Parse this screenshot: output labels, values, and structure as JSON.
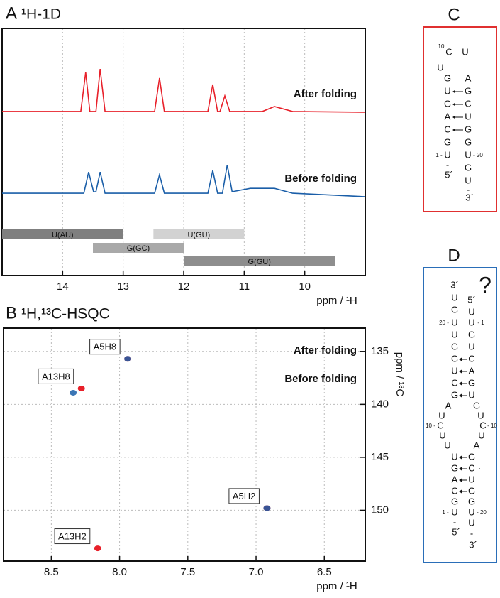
{
  "chart_data": [
    {
      "type": "line",
      "label": "A",
      "title": "¹H-1D",
      "x_label": "ppm / ¹H",
      "xlim": [
        15,
        9
      ],
      "xticks": [
        14,
        13,
        12,
        11,
        10
      ],
      "ylim": [
        0,
        100
      ],
      "grid": true,
      "series": [
        {
          "name": "After folding",
          "color": "#e8202a",
          "x": [
            15,
            13.7,
            13.62,
            13.55,
            13.45,
            13.38,
            13.3,
            12.48,
            12.4,
            12.32,
            11.6,
            11.52,
            11.44,
            11.4,
            11.32,
            11.24,
            10.7,
            10.5,
            10.2,
            9
          ],
          "values": [
            66.4,
            66.4,
            82.2,
            66.4,
            66.4,
            83.6,
            66.4,
            66.4,
            79.9,
            66.4,
            66.4,
            77.3,
            66.4,
            66.4,
            72.7,
            66.4,
            66.4,
            68.4,
            66.4,
            66.1
          ]
        },
        {
          "name": "Before folding",
          "color": "#1a5ea8",
          "x": [
            15,
            13.65,
            13.57,
            13.49,
            13.45,
            13.38,
            13.3,
            12.48,
            12.4,
            12.32,
            11.6,
            11.52,
            11.44,
            11.36,
            11.28,
            11.2,
            10.9,
            10.5,
            10.2,
            9
          ],
          "values": [
            33.3,
            33.3,
            41.9,
            33.9,
            33.9,
            41.9,
            33.3,
            33.3,
            40.8,
            33.3,
            33.3,
            42.5,
            33.3,
            33.3,
            44.8,
            33.9,
            35.3,
            35.3,
            33.3,
            31.9
          ]
        }
      ],
      "ranges": [
        {
          "name": "U(AU)",
          "start": 15,
          "end": 13,
          "color": "#7f7f7f"
        },
        {
          "name": "U(GU)",
          "start": 12.5,
          "end": 11,
          "color": "#d2d2d2"
        },
        {
          "name": "G(GC)",
          "start": 13.5,
          "end": 12,
          "color": "#a9a9a9"
        },
        {
          "name": "G(GU)",
          "start": 12,
          "end": 9.5,
          "color": "#8e8e8e"
        }
      ]
    },
    {
      "type": "scatter",
      "label": "B",
      "title": "¹H,¹³C-HSQC",
      "x_label": "ppm / ¹H",
      "y_label": "ppm / ¹³C",
      "xlim": [
        8.85,
        6.2
      ],
      "xticks": [
        8.5,
        {
          "value": 8,
          "label": "8.0"
        },
        7.5,
        {
          "value": 7,
          "label": "7.0"
        },
        6.5
      ],
      "ylim": [
        132.8,
        154.8
      ],
      "yticks": [
        135,
        140,
        145,
        150
      ],
      "grid": true,
      "series": [
        {
          "name": "After folding",
          "color": "#e8202a",
          "x": [
            7.94,
            8.28,
            6.92,
            8.16
          ],
          "values": [
            135.7,
            138.5,
            149.8,
            153.6
          ],
          "labels": [
            "A5H8",
            "A13H8",
            "A5H2",
            "A13H2"
          ]
        },
        {
          "name": "Before folding",
          "color": "#1a5ea8",
          "x": [
            7.94,
            8.34,
            6.92
          ],
          "values": [
            135.7,
            138.9,
            149.8
          ]
        }
      ]
    }
  ],
  "panel_c": {
    "label": "C",
    "border_color": "#e03030",
    "highlight_color": "#e03030",
    "highlighted": [
      5,
      10
    ],
    "nodes": [
      "10",
      "C",
      "U",
      "U",
      "G",
      "A",
      "U",
      "G",
      "G",
      "C",
      "A",
      "U",
      "C",
      "G",
      "G",
      "G",
      "1 -",
      "U",
      "U",
      "- 20",
      "-",
      "G",
      "5´",
      "U",
      "-",
      "3´"
    ]
  },
  "panel_d": {
    "label": "D",
    "mark": "?",
    "border_color": "#2a6eb8",
    "highlight_color": "#2a6eb8",
    "highlighted": [
      16,
      21,
      32,
      38
    ],
    "nodes": [
      "3´",
      "U",
      "5´",
      "G",
      "U",
      "20 -",
      "U",
      "U",
      "- 1",
      "U",
      "G",
      "G",
      "U",
      "G",
      "C",
      "U",
      "A",
      "C",
      "G",
      "G",
      "U",
      "A",
      "U",
      "10 -",
      "C",
      "U",
      "U",
      "G",
      "U",
      "C",
      "- 10",
      "U",
      "A",
      "U",
      "G",
      "G",
      "C",
      "-",
      "A",
      "U",
      "C",
      "G",
      "G",
      "G",
      "1 -",
      "U",
      "U",
      "- 20",
      "-",
      "U",
      "5´",
      "-",
      "3´"
    ]
  }
}
